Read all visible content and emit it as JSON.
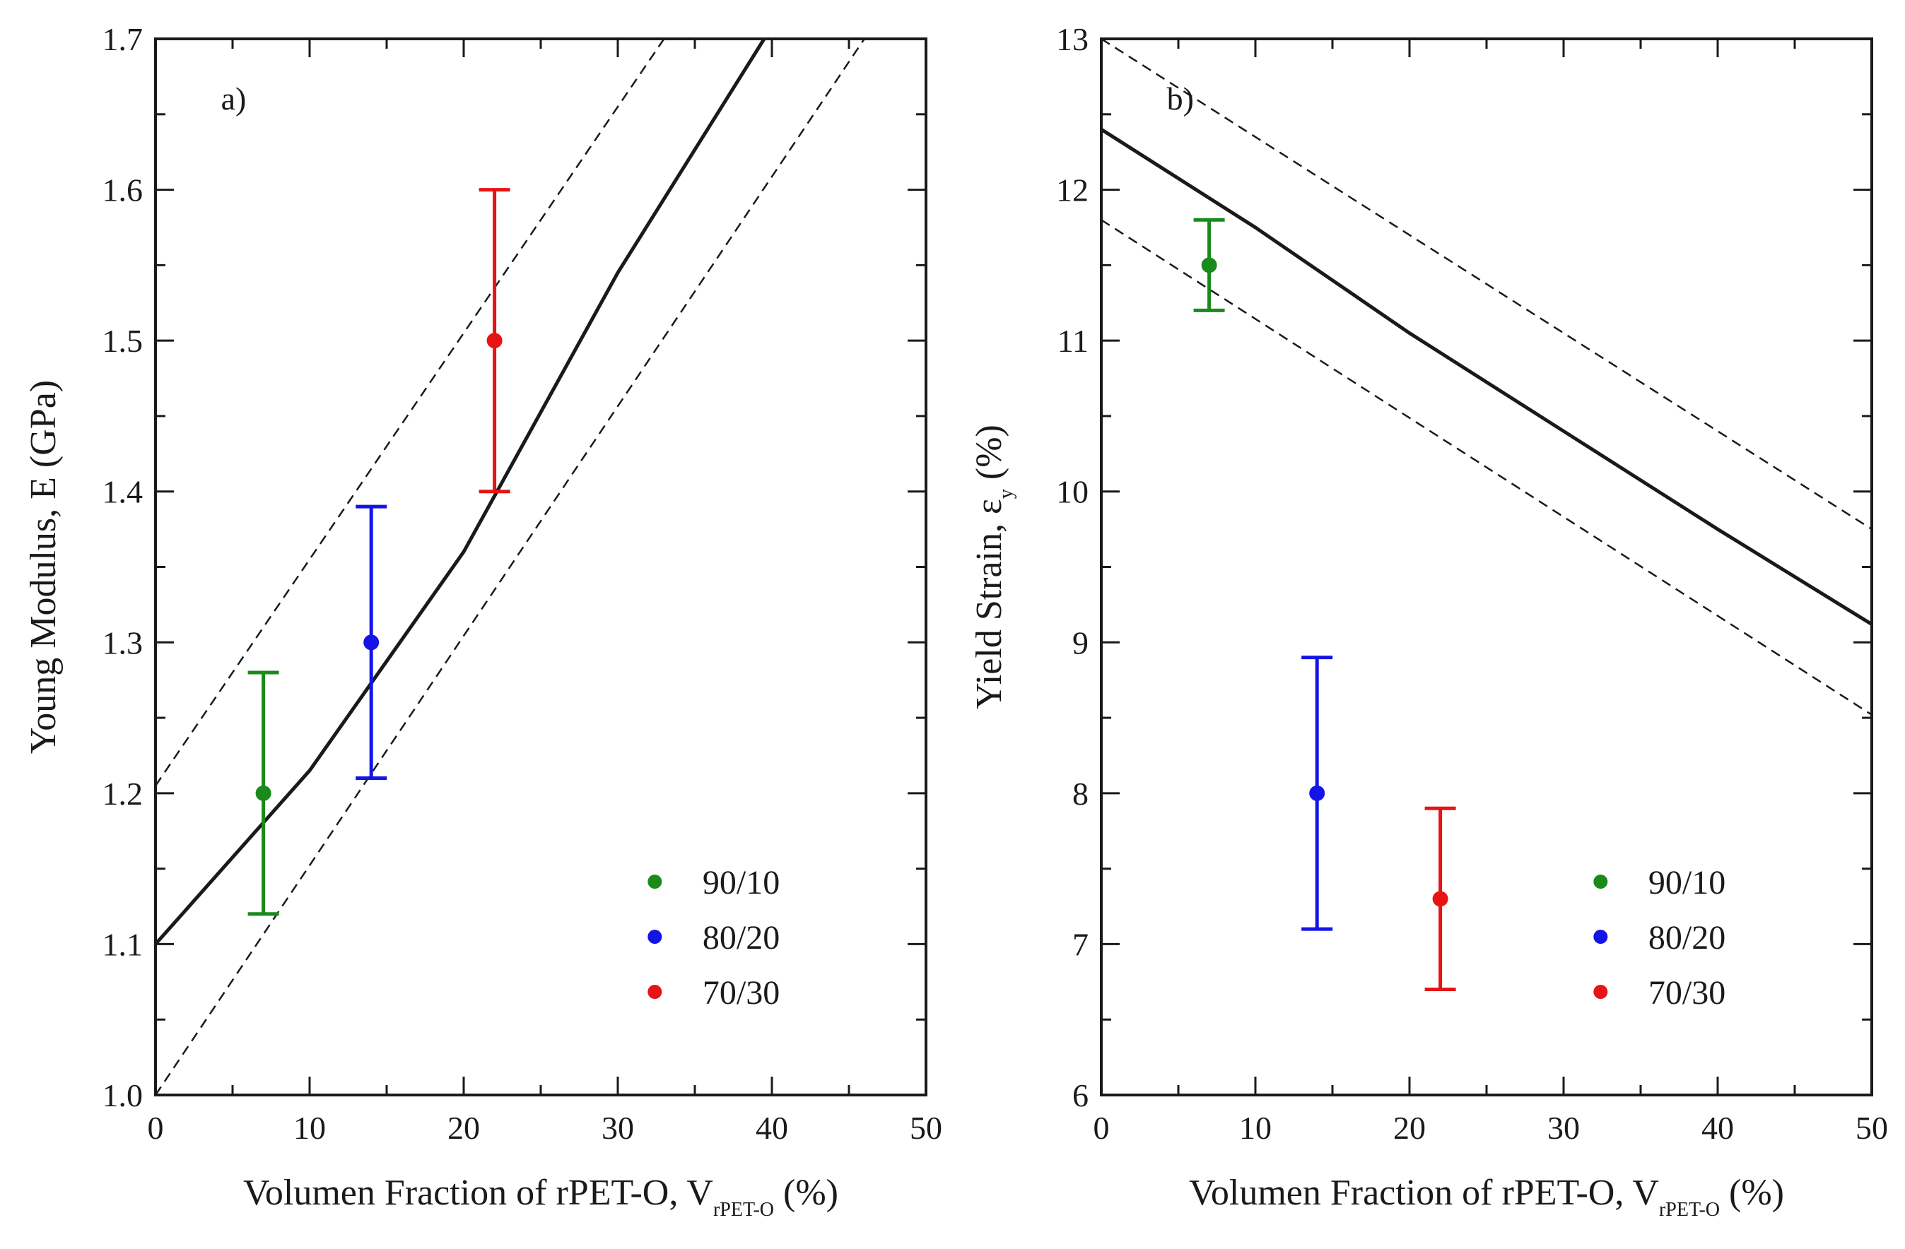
{
  "chart_data": [
    {
      "type": "scatter",
      "panel_label": "a)",
      "xlabel": {
        "main": "Volumen Fraction of rPET-O, V",
        "sub": "rPET-O",
        "tail": " (%)"
      },
      "ylabel": {
        "main": "Young Modulus, E (GPa)",
        "sub": "",
        "tail": ""
      },
      "xlim": [
        0,
        50
      ],
      "ylim": [
        1.0,
        1.7
      ],
      "xticks": [
        "0",
        "10",
        "20",
        "30",
        "40",
        "50"
      ],
      "yticks": [
        "1.0",
        "1.1",
        "1.2",
        "1.3",
        "1.4",
        "1.5",
        "1.6",
        "1.7"
      ],
      "grid": false,
      "legend_position": "bottom-right",
      "series": [
        {
          "name": "90/10",
          "color": "#1a8a1a",
          "x": 7,
          "y": 1.2,
          "err_low": 1.12,
          "err_high": 1.28
        },
        {
          "name": "80/20",
          "color": "#1414e6",
          "x": 14,
          "y": 1.3,
          "err_low": 1.21,
          "err_high": 1.39
        },
        {
          "name": "70/30",
          "color": "#e61414",
          "x": 22,
          "y": 1.5,
          "err_low": 1.4,
          "err_high": 1.6
        }
      ],
      "model_line": [
        [
          0,
          1.1
        ],
        [
          10,
          1.215
        ],
        [
          20,
          1.36
        ],
        [
          30,
          1.545
        ],
        [
          39.5,
          1.7
        ]
      ],
      "bound_upper": [
        [
          0,
          1.205
        ],
        [
          33,
          1.7
        ]
      ],
      "bound_lower": [
        [
          0,
          1.0
        ],
        [
          46,
          1.7
        ]
      ]
    },
    {
      "type": "scatter",
      "panel_label": "b)",
      "xlabel": {
        "main": "Volumen Fraction of rPET-O, V",
        "sub": "rPET-O",
        "tail": " (%)"
      },
      "ylabel": {
        "main": "Yield Strain, ε",
        "sub": "y",
        "tail": " (%)"
      },
      "xlim": [
        0,
        50
      ],
      "ylim": [
        6,
        13
      ],
      "xticks": [
        "0",
        "10",
        "20",
        "30",
        "40",
        "50"
      ],
      "yticks": [
        "6",
        "7",
        "8",
        "9",
        "10",
        "11",
        "12",
        "13"
      ],
      "grid": false,
      "legend_position": "bottom-right",
      "series": [
        {
          "name": "90/10",
          "color": "#1a8a1a",
          "x": 7,
          "y": 11.5,
          "err_low": 11.2,
          "err_high": 11.8
        },
        {
          "name": "80/20",
          "color": "#1414e6",
          "x": 14,
          "y": 8.0,
          "err_low": 7.1,
          "err_high": 8.9
        },
        {
          "name": "70/30",
          "color": "#e61414",
          "x": 22,
          "y": 7.3,
          "err_low": 6.7,
          "err_high": 7.9
        }
      ],
      "model_line": [
        [
          0,
          12.4
        ],
        [
          10,
          11.75
        ],
        [
          20,
          11.05
        ],
        [
          30,
          10.4
        ],
        [
          40,
          9.75
        ],
        [
          50,
          9.12
        ]
      ],
      "bound_upper": [
        [
          0,
          13.0
        ],
        [
          50,
          9.75
        ]
      ],
      "bound_lower": [
        [
          0,
          11.8
        ],
        [
          50,
          8.52
        ]
      ]
    }
  ]
}
